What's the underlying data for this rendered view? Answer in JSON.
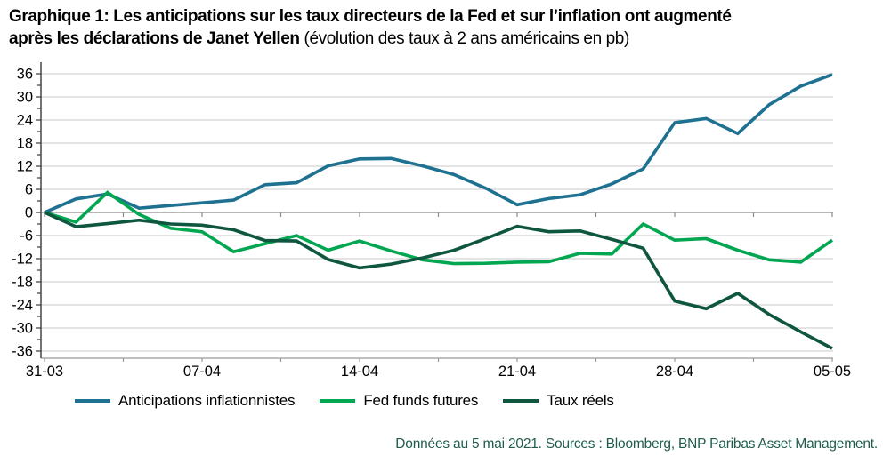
{
  "title": {
    "line1_bold": "Graphique 1: Les anticipations sur les taux directeurs de la Fed et sur l’inflation ont augmenté",
    "line2_bold": "après les déclarations de Janet Yellen ",
    "line2_normal": "(évolution des taux à 2 ans américains en pb)"
  },
  "footer": {
    "source_note": "Données au 5 mai 2021. Sources : Bloomberg, BNP Paribas Asset Management."
  },
  "legend": {
    "items": [
      {
        "label": "Anticipations inflationnistes"
      },
      {
        "label": "Fed funds futures"
      },
      {
        "label": "Taux réels"
      }
    ]
  },
  "chart_data": {
    "type": "line",
    "title": "Évolution des taux à 2 ans américains en pb depuis le 31-03",
    "x_tick_labels": [
      "31-03",
      "07-04",
      "14-04",
      "21-04",
      "28-04",
      "05-05"
    ],
    "x_tick_indices": [
      0,
      5,
      10,
      15,
      20,
      25
    ],
    "n_points": 26,
    "ylim": [
      -36,
      36
    ],
    "y_tick_step": 6,
    "y_minor_step": 3,
    "y_tick_labels": [
      36,
      30,
      24,
      18,
      12,
      6,
      0,
      -6,
      -12,
      -18,
      -24,
      -30,
      -36
    ],
    "grid": true,
    "legend_position": "bottom",
    "colors": {
      "grid": "#c9c9c9",
      "zero_line": "#8c8c8c",
      "y_axis": "#3a3a3a",
      "x_axis": "#9a9a9a",
      "tick_label": "#000000"
    },
    "series": [
      {
        "name": "Anticipations inflationnistes",
        "color": "#1e7191",
        "values": [
          0,
          3.5,
          4.8,
          1.1,
          1.8,
          2.5,
          3.2,
          7.2,
          7.7,
          12.1,
          13.9,
          14.0,
          12.1,
          9.8,
          6.3,
          2.0,
          3.6,
          4.6,
          7.4,
          11.3,
          23.3,
          24.4,
          20.5,
          28.0,
          32.8,
          35.8
        ]
      },
      {
        "name": "Fed funds futures",
        "color": "#00a650",
        "values": [
          0,
          -2.5,
          5.2,
          -0.5,
          -4.1,
          -5.0,
          -10.2,
          -8.1,
          -6.0,
          -9.8,
          -7.4,
          -10.0,
          -12.3,
          -13.3,
          -13.2,
          -12.9,
          -12.8,
          -10.6,
          -10.8,
          -3.0,
          -7.2,
          -6.8,
          -9.8,
          -12.3,
          -12.9,
          -7.2
        ]
      },
      {
        "name": "Taux réels",
        "color": "#0e5640",
        "values": [
          0,
          -3.7,
          -2.9,
          -2.0,
          -3.0,
          -3.3,
          -4.5,
          -7.3,
          -7.4,
          -12.2,
          -14.4,
          -13.4,
          -11.8,
          -9.8,
          -6.8,
          -3.6,
          -5.0,
          -4.8,
          -7.0,
          -9.3,
          -23.0,
          -25.0,
          -21.0,
          -26.5,
          -31.0,
          -35.3
        ]
      }
    ]
  }
}
